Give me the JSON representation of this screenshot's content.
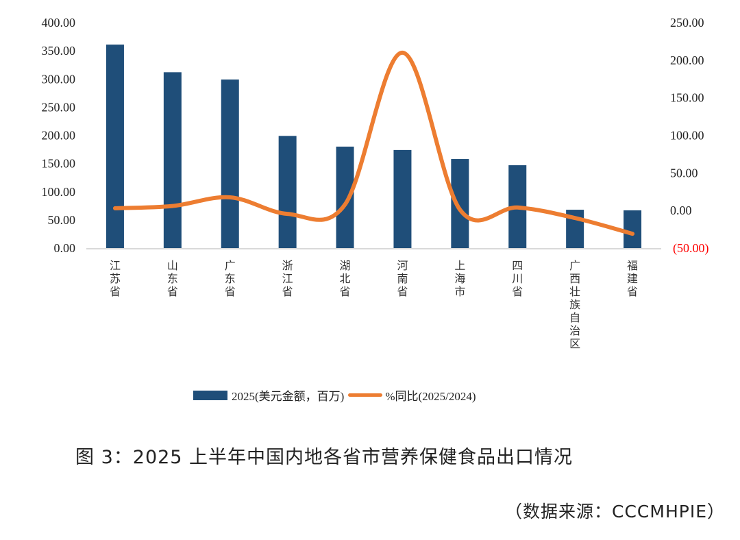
{
  "chart_data": {
    "type": "bar+line",
    "categories": [
      "江苏省",
      "山东省",
      "广东省",
      "浙江省",
      "湖北省",
      "河南省",
      "上海市",
      "四川省",
      "广西壮族自治区",
      "福建省"
    ],
    "series": [
      {
        "name": "2025(美元金额，百万)",
        "type": "bar",
        "axis": "left",
        "color": "#1F4E79",
        "values": [
          361,
          312,
          299,
          199,
          180,
          174,
          158,
          147,
          68,
          67
        ]
      },
      {
        "name": "%同比(2025/2024)",
        "type": "line",
        "axis": "right",
        "smooth": true,
        "color": "#ED7D31",
        "values": [
          3,
          6,
          17.5,
          -4.5,
          8,
          210,
          1,
          4,
          -10,
          -31
        ]
      }
    ],
    "left_axis": {
      "ylim": [
        0,
        400
      ],
      "ticks": [
        "0.00",
        "50.00",
        "100.00",
        "150.00",
        "200.00",
        "250.00",
        "300.00",
        "350.00",
        "400.00"
      ]
    },
    "right_axis": {
      "ylim": [
        -50,
        250
      ],
      "ticks": [
        "(50.00)",
        "0.00",
        "50.00",
        "100.00",
        "150.00",
        "200.00",
        "250.00"
      ],
      "negative_color": "#FF0000"
    },
    "grid": false,
    "legend": {
      "position": "bottom",
      "items": [
        "2025(美元金额，百万)",
        "%同比(2025/2024)"
      ]
    },
    "title": "图 3：2025 上半年中国内地各省市营养保健食品出口情况",
    "source": "（数据来源：CCCMHPIE）"
  }
}
